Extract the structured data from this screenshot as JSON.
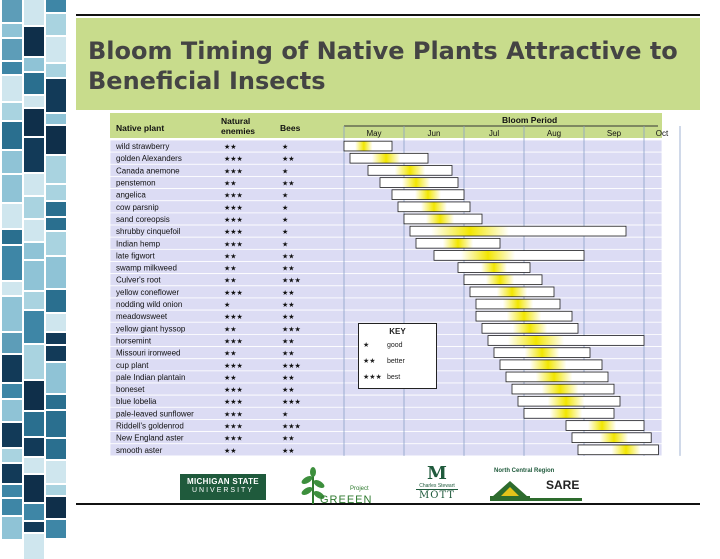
{
  "title_lines": [
    "Bloom Timing of Native Plants Attractive to",
    "Beneficial Insects"
  ],
  "headers": {
    "plant": "Native plant",
    "enemies": [
      "Natural",
      "enemies"
    ],
    "bees": "Bees",
    "period": "Bloom Period"
  },
  "months": [
    "May",
    "Jun",
    "Jul",
    "Aug",
    "Sep",
    "Oct"
  ],
  "star": "★",
  "rows": [
    {
      "name": "wild strawberry",
      "enemies": 2,
      "bees": 1,
      "start": 0.0,
      "end": 0.8,
      "peak": 0.33
    },
    {
      "name": "golden Alexanders",
      "enemies": 3,
      "bees": 2,
      "start": 0.1,
      "end": 1.4,
      "peak": 0.7
    },
    {
      "name": "Canada anemone",
      "enemies": 3,
      "bees": 1,
      "start": 0.4,
      "end": 1.8,
      "peak": 1.1
    },
    {
      "name": "penstemon",
      "enemies": 2,
      "bees": 2,
      "start": 0.6,
      "end": 1.9,
      "peak": 1.2
    },
    {
      "name": "angelica",
      "enemies": 3,
      "bees": 1,
      "start": 0.8,
      "end": 2.0,
      "peak": 1.4
    },
    {
      "name": "cow parsnip",
      "enemies": 3,
      "bees": 1,
      "start": 0.9,
      "end": 2.1,
      "peak": 1.5
    },
    {
      "name": "sand coreopsis",
      "enemies": 3,
      "bees": 1,
      "start": 1.0,
      "end": 2.3,
      "peak": 1.6
    },
    {
      "name": "shrubby cinquefoil",
      "enemies": 3,
      "bees": 1,
      "start": 1.1,
      "end": 4.7,
      "peak": 2.1
    },
    {
      "name": "Indian hemp",
      "enemies": 3,
      "bees": 1,
      "start": 1.2,
      "end": 2.6,
      "peak": 1.9
    },
    {
      "name": "late figwort",
      "enemies": 2,
      "bees": 2,
      "start": 1.5,
      "end": 4.0,
      "peak": 2.4
    },
    {
      "name": "swamp milkweed",
      "enemies": 2,
      "bees": 2,
      "start": 1.9,
      "end": 3.1,
      "peak": 2.5
    },
    {
      "name": "Culver's root",
      "enemies": 2,
      "bees": 3,
      "start": 2.0,
      "end": 3.3,
      "peak": 2.6
    },
    {
      "name": "yellow coneflower",
      "enemies": 3,
      "bees": 2,
      "start": 2.1,
      "end": 3.5,
      "peak": 2.8
    },
    {
      "name": "nodding wild onion",
      "enemies": 1,
      "bees": 2,
      "start": 2.2,
      "end": 3.6,
      "peak": 2.9
    },
    {
      "name": "meadowsweet",
      "enemies": 3,
      "bees": 2,
      "start": 2.2,
      "end": 3.8,
      "peak": 3.0
    },
    {
      "name": "yellow giant hyssop",
      "enemies": 2,
      "bees": 3,
      "start": 2.3,
      "end": 3.9,
      "peak": 3.1
    },
    {
      "name": "horsemint",
      "enemies": 3,
      "bees": 2,
      "start": 2.4,
      "end": 5.0,
      "peak": 3.2
    },
    {
      "name": "Missouri ironweed",
      "enemies": 2,
      "bees": 2,
      "start": 2.5,
      "end": 4.1,
      "peak": 3.3
    },
    {
      "name": "cup plant",
      "enemies": 3,
      "bees": 3,
      "start": 2.6,
      "end": 4.3,
      "peak": 3.4
    },
    {
      "name": "pale Indian plantain",
      "enemies": 2,
      "bees": 2,
      "start": 2.7,
      "end": 4.4,
      "peak": 3.5
    },
    {
      "name": "boneset",
      "enemies": 3,
      "bees": 2,
      "start": 2.8,
      "end": 4.5,
      "peak": 3.6
    },
    {
      "name": "blue lobelia",
      "enemies": 3,
      "bees": 3,
      "start": 2.9,
      "end": 4.6,
      "peak": 3.7
    },
    {
      "name": "pale-leaved sunflower",
      "enemies": 3,
      "bees": 1,
      "start": 3.0,
      "end": 4.5,
      "peak": 3.7
    },
    {
      "name": "Riddell's goldenrod",
      "enemies": 3,
      "bees": 3,
      "start": 3.7,
      "end": 5.0,
      "peak": 4.3
    },
    {
      "name": "New England aster",
      "enemies": 3,
      "bees": 2,
      "start": 3.8,
      "end": 5.2,
      "peak": 4.5
    },
    {
      "name": "smooth aster",
      "enemies": 2,
      "bees": 2,
      "start": 3.9,
      "end": 5.4,
      "peak": 4.7
    }
  ],
  "key": {
    "title": "KEY",
    "items": [
      {
        "stars": "★",
        "label": "good"
      },
      {
        "stars": "★★",
        "label": "better"
      },
      {
        "stars": "★★★",
        "label": "best"
      }
    ]
  },
  "logos": {
    "msu": [
      "MICHIGAN STATE",
      "UNIVERSITY"
    ],
    "green": [
      "Project",
      "GREEEN"
    ],
    "mott": [
      "M",
      "Charles Stewart",
      "MOTT"
    ],
    "sare": [
      "North Central Region",
      "SARE"
    ]
  },
  "colors": {
    "title_band": "#c8dc8c",
    "header_band": "#c8dc8c",
    "row_bg": "#dcdcf4",
    "bloom_peak": "#f2e600",
    "grid": "#8aa0c8"
  }
}
